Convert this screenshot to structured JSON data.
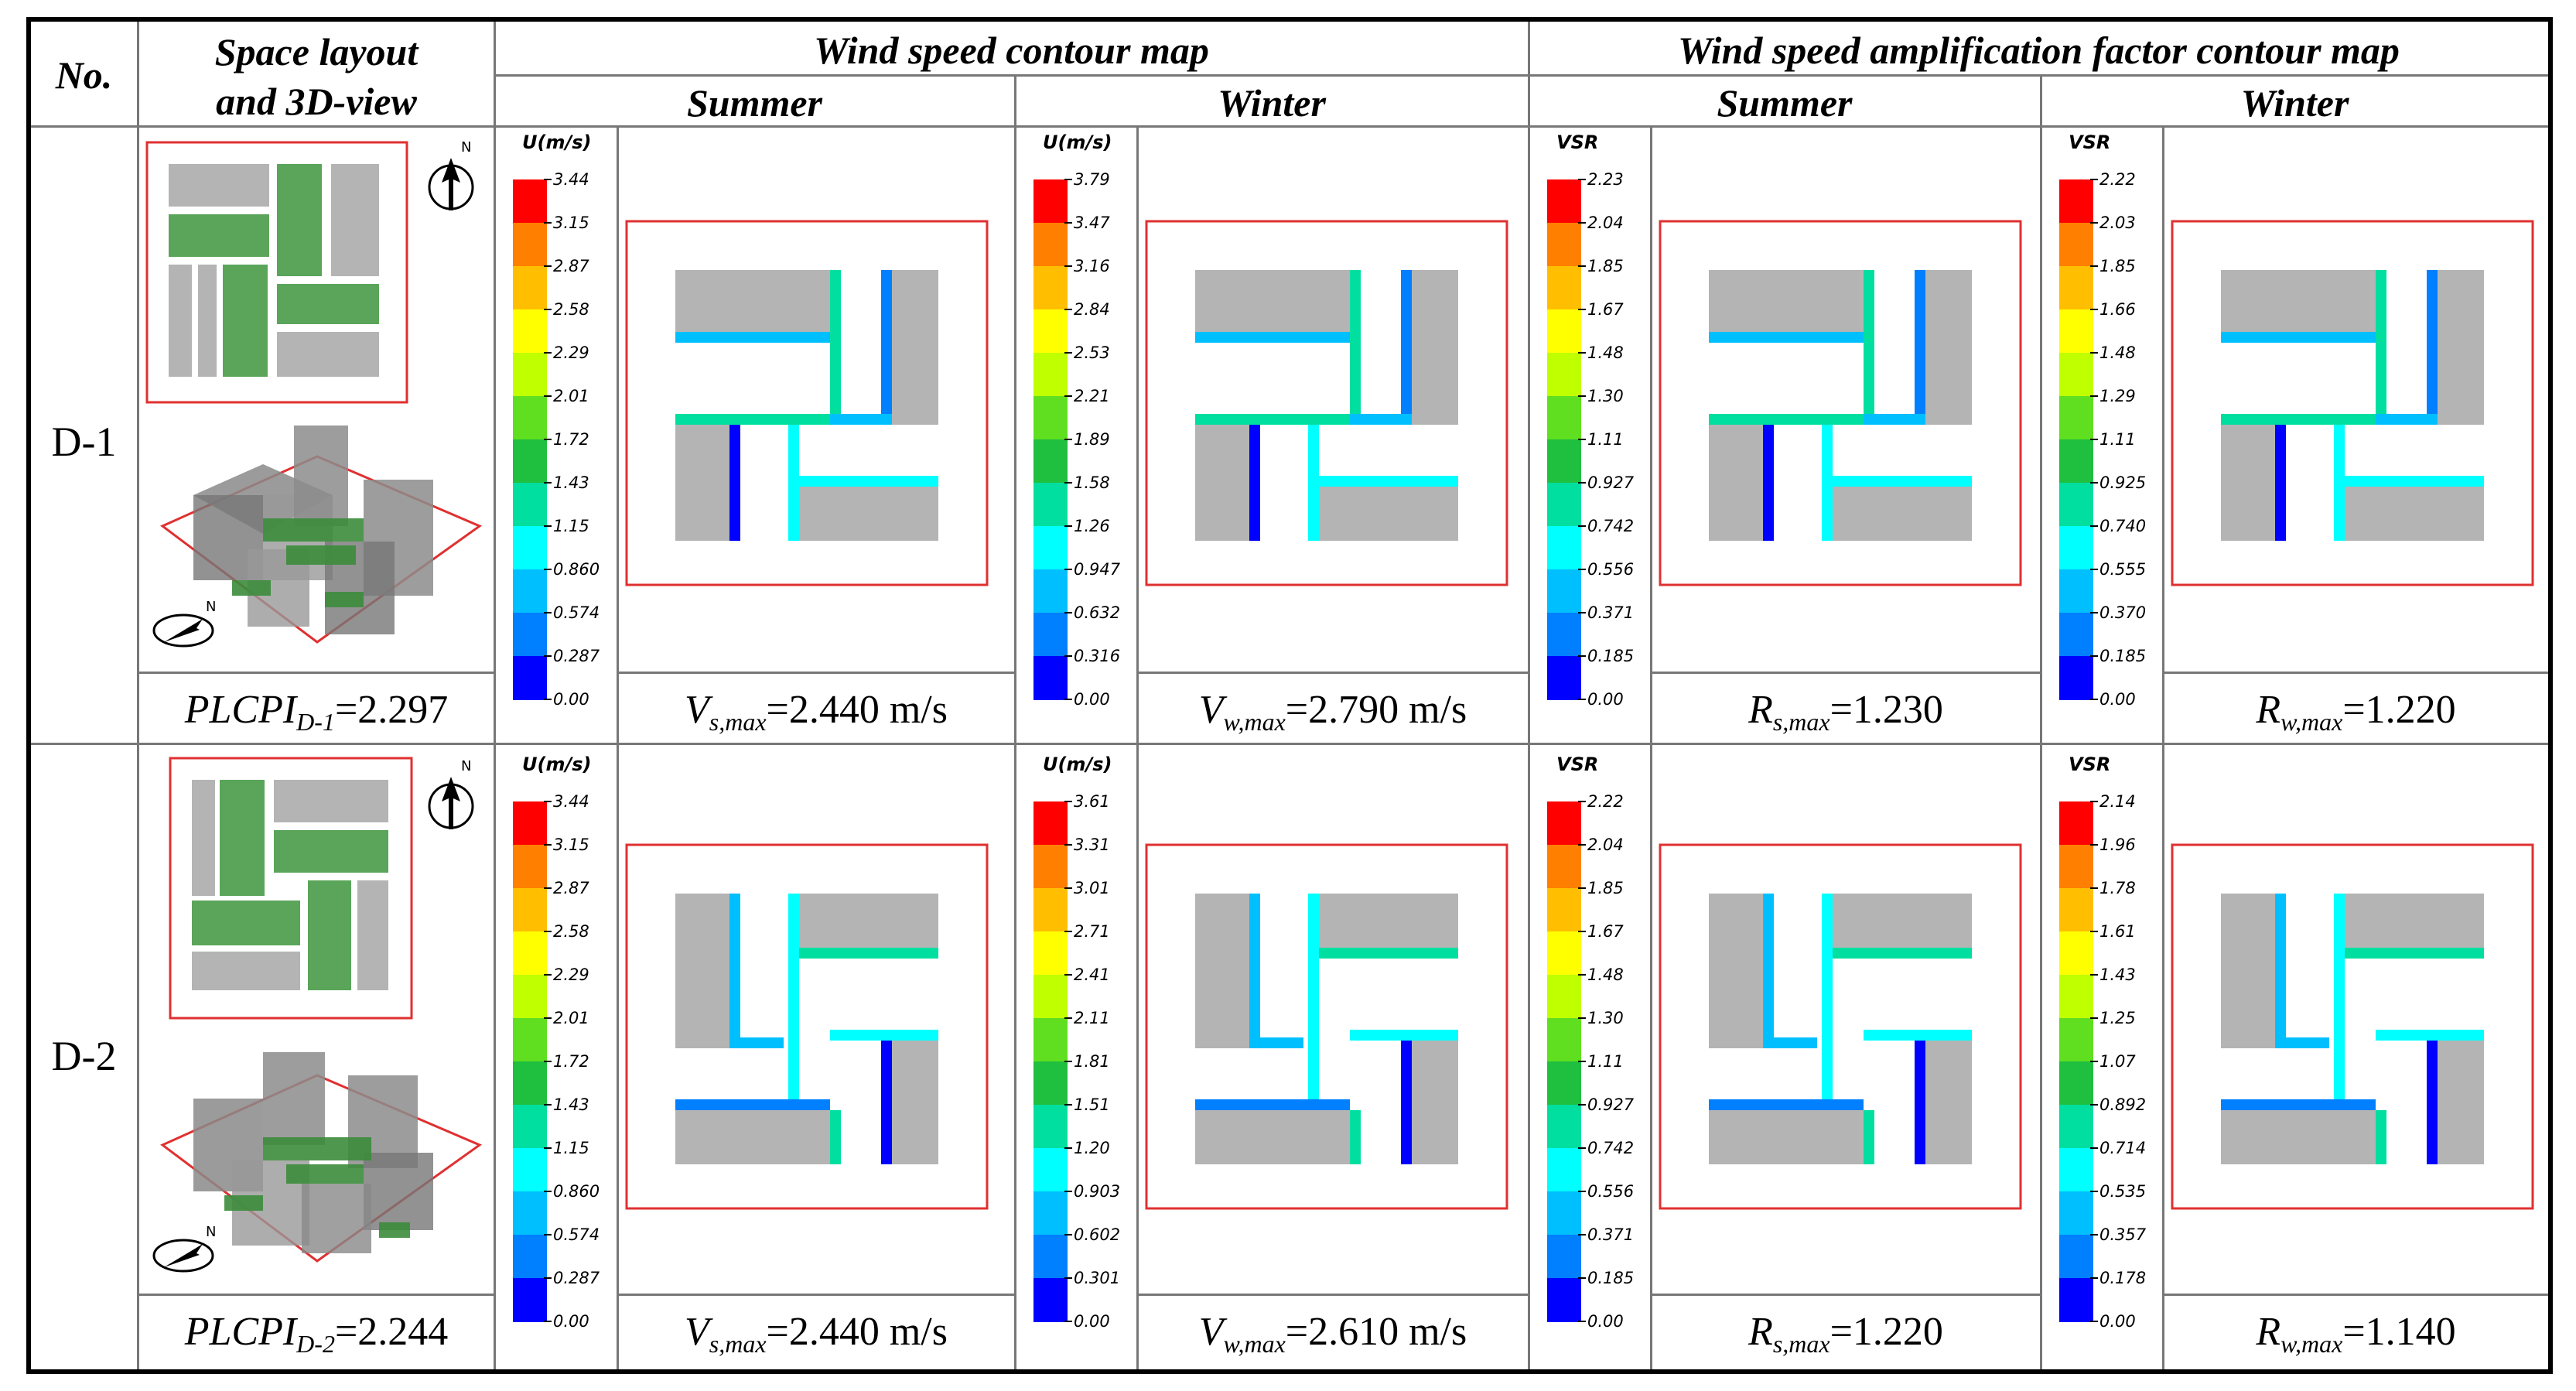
{
  "header": {
    "no": "No.",
    "space_layout_line1": "Space layout",
    "space_layout_line2": "and 3D-view",
    "wind_speed": "Wind speed contour map",
    "amplification": "Wind speed amplification factor contour map",
    "summer": "Summer",
    "winter": "Winter"
  },
  "rows": [
    {
      "id": "D-1",
      "plcpi": {
        "name": "PLCPI",
        "sub": "D-1",
        "value": "=2.297"
      },
      "vs": {
        "name": "V",
        "sub": "s,max",
        "value": "=2.440 m/s"
      },
      "vw": {
        "name": "V",
        "sub": "w,max",
        "value": "=2.790 m/s"
      },
      "rs": {
        "name": "R",
        "sub": "s,max",
        "value": "=1.230"
      },
      "rw": {
        "name": "R",
        "sub": "w,max",
        "value": "=1.220"
      },
      "legends": [
        {
          "title": "U(m/s)",
          "labels": [
            "3.44",
            "3.15",
            "2.87",
            "2.58",
            "2.29",
            "2.01",
            "1.72",
            "1.43",
            "1.15",
            "0.860",
            "0.574",
            "0.287",
            "0.00"
          ]
        },
        {
          "title": "U(m/s)",
          "labels": [
            "3.79",
            "3.47",
            "3.16",
            "2.84",
            "2.53",
            "2.21",
            "1.89",
            "1.58",
            "1.26",
            "0.947",
            "0.632",
            "0.316",
            "0.00"
          ]
        },
        {
          "title": "VSR",
          "labels": [
            "2.23",
            "2.04",
            "1.85",
            "1.67",
            "1.48",
            "1.30",
            "1.11",
            "0.927",
            "0.742",
            "0.556",
            "0.371",
            "0.185",
            "0.00"
          ]
        },
        {
          "title": "VSR",
          "labels": [
            "2.22",
            "2.03",
            "1.85",
            "1.66",
            "1.48",
            "1.29",
            "1.11",
            "0.925",
            "0.740",
            "0.555",
            "0.370",
            "0.185",
            "0.00"
          ]
        }
      ]
    },
    {
      "id": "D-2",
      "plcpi": {
        "name": "PLCPI",
        "sub": "D-2",
        "value": "=2.244"
      },
      "vs": {
        "name": "V",
        "sub": "s,max",
        "value": "=2.440 m/s"
      },
      "vw": {
        "name": "V",
        "sub": "w,max",
        "value": "=2.610 m/s"
      },
      "rs": {
        "name": "R",
        "sub": "s,max",
        "value": "=1.220"
      },
      "rw": {
        "name": "R",
        "sub": "w,max",
        "value": "=1.140"
      },
      "legends": [
        {
          "title": "U(m/s)",
          "labels": [
            "3.44",
            "3.15",
            "2.87",
            "2.58",
            "2.29",
            "2.01",
            "1.72",
            "1.43",
            "1.15",
            "0.860",
            "0.574",
            "0.287",
            "0.00"
          ]
        },
        {
          "title": "U(m/s)",
          "labels": [
            "3.61",
            "3.31",
            "3.01",
            "2.71",
            "2.41",
            "2.11",
            "1.81",
            "1.51",
            "1.20",
            "0.903",
            "0.602",
            "0.301",
            "0.00"
          ]
        },
        {
          "title": "VSR",
          "labels": [
            "2.22",
            "2.04",
            "1.85",
            "1.67",
            "1.48",
            "1.30",
            "1.11",
            "0.927",
            "0.742",
            "0.556",
            "0.371",
            "0.185",
            "0.00"
          ]
        },
        {
          "title": "VSR",
          "labels": [
            "2.14",
            "1.96",
            "1.78",
            "1.61",
            "1.43",
            "1.25",
            "1.07",
            "0.892",
            "0.714",
            "0.535",
            "0.357",
            "0.178",
            "0.00"
          ]
        }
      ]
    }
  ],
  "compass": {
    "north": "N"
  },
  "colors": {
    "building": "#b4b4b4",
    "green": "#5aa55a",
    "frame_red": "#e03030",
    "scale": [
      "#ff0000",
      "#ff7f00",
      "#ffbf00",
      "#ffff00",
      "#bfff00",
      "#5fdf1f",
      "#1fbf3f",
      "#00dfa0",
      "#00ffff",
      "#00bfff",
      "#007fff",
      "#0000ff"
    ]
  }
}
